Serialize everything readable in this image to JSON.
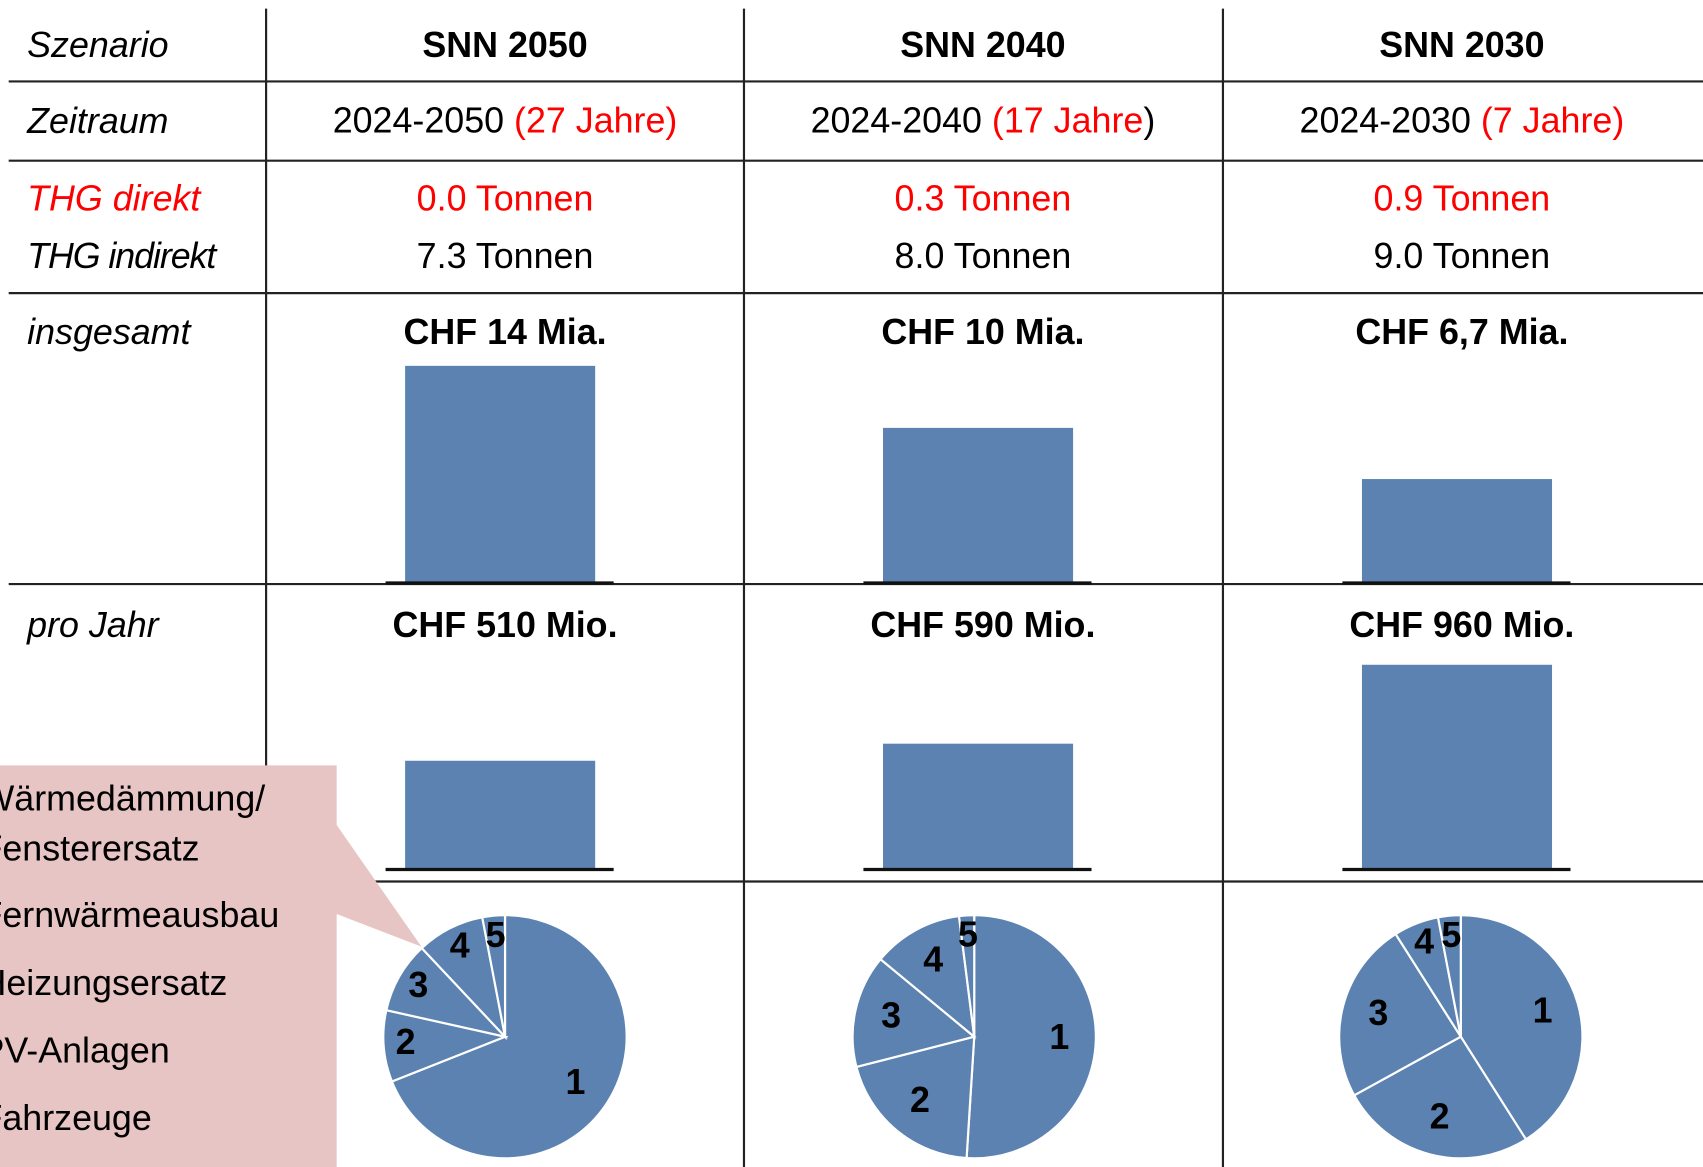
{
  "header": {
    "label": "Szenario",
    "columns": [
      "SNN 2050",
      "SNN 2040",
      "SNN 2030"
    ]
  },
  "period": {
    "label": "Zeitraum",
    "cells": [
      [
        {
          "text": "2024-2050 ",
          "color": "#000000"
        },
        {
          "text": "(27 Jahre)",
          "color": "#ff0000"
        }
      ],
      [
        {
          "text": "2024-2040 ",
          "color": "#000000"
        },
        {
          "text": "(17 Jahre",
          "color": "#ff0000"
        },
        {
          "text": ")",
          "color": "#000000"
        }
      ],
      [
        {
          "text": "2024-2030 ",
          "color": "#000000"
        },
        {
          "text": "(7 Jahre)",
          "color": "#ff0000"
        }
      ]
    ]
  },
  "emissions": {
    "direct_label": "THG direkt",
    "direct_color": "#ff0000",
    "indirect_label": "THG indirekt",
    "direct": [
      "0.0 Tonnen",
      "0.3 Tonnen",
      "0.9 Tonnen"
    ],
    "indirect": [
      "7.3 Tonnen",
      "8.0 Tonnen",
      "9.0 Tonnen"
    ]
  },
  "total": {
    "label": "insgesamt",
    "values": [
      14,
      10,
      6.7
    ],
    "value_labels": [
      "CHF 14 Mia.",
      "CHF 10 Mia.",
      "CHF 6,7 Mia."
    ],
    "color": "#5b82b1"
  },
  "per_year": {
    "label": "pro Jahr",
    "values": [
      510,
      590,
      960
    ],
    "value_labels": [
      "CHF 510 Mio.",
      "CHF 590 Mio.",
      "CHF 960 Mio."
    ],
    "color": "#5b82b1"
  },
  "pies": {
    "color": "#5b82b1",
    "slice_labels": [
      "1",
      "2",
      "3",
      "4",
      "5"
    ],
    "values": [
      [
        69,
        9.5,
        9.5,
        9,
        3
      ],
      [
        51,
        20,
        15,
        12,
        2
      ],
      [
        41,
        26,
        24,
        6,
        3
      ]
    ]
  },
  "legend": {
    "color": "#e8c5c5",
    "items": [
      [
        "Wärmedämmung/",
        "Fensterersatz"
      ],
      [
        "Fernwärmeausbau"
      ],
      [
        "Heizungsersatz"
      ],
      [
        "PV-Anlagen"
      ],
      [
        "Fahrzeuge"
      ]
    ]
  }
}
